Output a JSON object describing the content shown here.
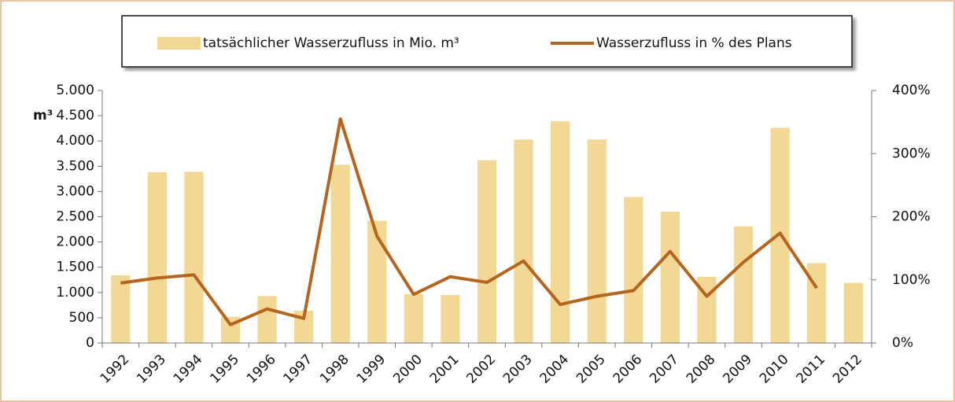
{
  "chart_data": {
    "type": "bar",
    "y_label": "m³",
    "categories": [
      "1992",
      "1993",
      "1994",
      "1995",
      "1996",
      "1997",
      "1998",
      "1999",
      "2000",
      "2001",
      "2002",
      "2003",
      "2004",
      "2005",
      "2006",
      "2007",
      "2008",
      "2009",
      "2010",
      "2011",
      "2012"
    ],
    "series": [
      {
        "name": "tatsächlicher Wasserzufluss in Mio. m³",
        "type": "bar",
        "color": "#f2d795",
        "values": [
          1340,
          3380,
          3390,
          520,
          930,
          640,
          3530,
          2420,
          970,
          950,
          3620,
          4030,
          4390,
          4030,
          2890,
          2600,
          1310,
          2310,
          4260,
          1580,
          1190
        ]
      },
      {
        "name": "Wasserzufluss in % des Plans",
        "type": "line",
        "axis": "y2",
        "color": "#b5651d",
        "values": [
          95,
          103,
          108,
          29,
          54,
          39,
          355,
          169,
          77,
          105,
          96,
          130,
          61,
          74,
          83,
          145,
          74,
          128,
          174,
          87,
          null
        ]
      }
    ],
    "ylim": [
      0,
      5000
    ],
    "yticks": [
      0,
      500,
      {
        "value": 1000,
        "label": "1.000"
      },
      {
        "value": 1500,
        "label": "1.500"
      },
      {
        "value": 2000,
        "label": "2.000"
      },
      {
        "value": 2500,
        "label": "2.500"
      },
      {
        "value": 3000,
        "label": "3.000"
      },
      {
        "value": 3500,
        "label": "3.500"
      },
      {
        "value": 4000,
        "label": "4.000"
      },
      {
        "value": 4500,
        "label": "4.500"
      },
      {
        "value": 5000,
        "label": "5.000"
      }
    ],
    "y2lim": [
      0,
      400
    ],
    "y2ticks": [
      {
        "value": 0,
        "label": "0%"
      },
      {
        "value": 100,
        "label": "100%"
      },
      {
        "value": 200,
        "label": "200%"
      },
      {
        "value": 300,
        "label": "300%"
      },
      {
        "value": 400,
        "label": "400%"
      }
    ],
    "legend": "top"
  }
}
